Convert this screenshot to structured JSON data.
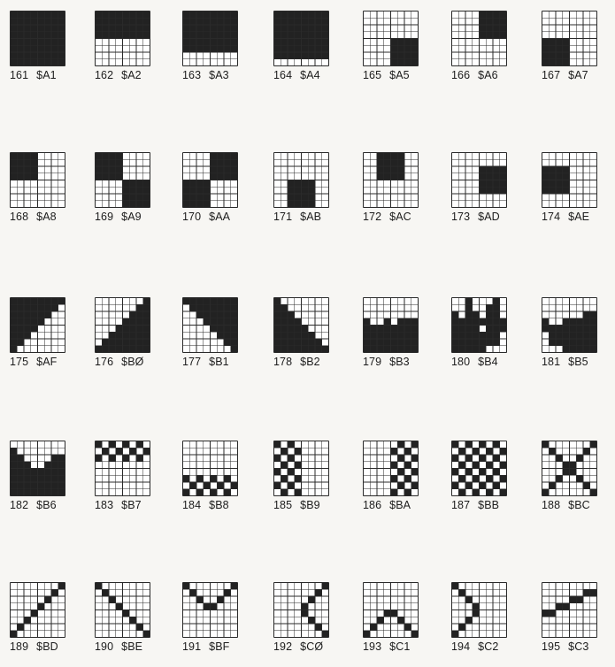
{
  "colors": {
    "ink": "#222222",
    "paper": "#ffffff",
    "grid": "#2a2a2a",
    "page": "#f7f6f3"
  },
  "characters": [
    {
      "dec": "161",
      "hex": "$A1",
      "rows": [
        "11111111",
        "11111111",
        "11111111",
        "11111111",
        "11111111",
        "11111111",
        "11111111",
        "11111111"
      ]
    },
    {
      "dec": "162",
      "hex": "$A2",
      "rows": [
        "11111111",
        "11111111",
        "11111111",
        "11111111",
        "00000000",
        "00000000",
        "00000000",
        "00000000"
      ]
    },
    {
      "dec": "163",
      "hex": "$A3",
      "rows": [
        "11111111",
        "11111111",
        "11111111",
        "11111111",
        "11111111",
        "11111111",
        "00000000",
        "00000000"
      ]
    },
    {
      "dec": "164",
      "hex": "$A4",
      "rows": [
        "11111111",
        "11111111",
        "11111111",
        "11111111",
        "11111111",
        "11111111",
        "11111111",
        "00000000"
      ]
    },
    {
      "dec": "165",
      "hex": "$A5",
      "rows": [
        "00000000",
        "00000000",
        "00000000",
        "00000000",
        "00001111",
        "00001111",
        "00001111",
        "00001111"
      ]
    },
    {
      "dec": "166",
      "hex": "$A6",
      "rows": [
        "00001111",
        "00001111",
        "00001111",
        "00001111",
        "00000000",
        "00000000",
        "00000000",
        "00000000"
      ]
    },
    {
      "dec": "167",
      "hex": "$A7",
      "rows": [
        "00000000",
        "00000000",
        "00000000",
        "00000000",
        "11110000",
        "11110000",
        "11110000",
        "11110000"
      ]
    },
    {
      "dec": "168",
      "hex": "$A8",
      "rows": [
        "11110000",
        "11110000",
        "11110000",
        "11110000",
        "00000000",
        "00000000",
        "00000000",
        "00000000"
      ]
    },
    {
      "dec": "169",
      "hex": "$A9",
      "rows": [
        "11110000",
        "11110000",
        "11110000",
        "11110000",
        "00001111",
        "00001111",
        "00001111",
        "00001111"
      ]
    },
    {
      "dec": "170",
      "hex": "$AA",
      "rows": [
        "00001111",
        "00001111",
        "00001111",
        "00001111",
        "11110000",
        "11110000",
        "11110000",
        "11110000"
      ]
    },
    {
      "dec": "171",
      "hex": "$AB",
      "rows": [
        "00000000",
        "00000000",
        "00000000",
        "00000000",
        "00111100",
        "00111100",
        "00111100",
        "00111100"
      ]
    },
    {
      "dec": "172",
      "hex": "$AC",
      "rows": [
        "00111100",
        "00111100",
        "00111100",
        "00111100",
        "00000000",
        "00000000",
        "00000000",
        "00000000"
      ]
    },
    {
      "dec": "173",
      "hex": "$AD",
      "rows": [
        "00000000",
        "00000000",
        "00001111",
        "00001111",
        "00001111",
        "00001111",
        "00000000",
        "00000000"
      ]
    },
    {
      "dec": "174",
      "hex": "$AE",
      "rows": [
        "00000000",
        "00000000",
        "11110000",
        "11110000",
        "11110000",
        "11110000",
        "00000000",
        "00000000"
      ]
    },
    {
      "dec": "175",
      "hex": "$AF",
      "rows": [
        "11111111",
        "11111110",
        "11111100",
        "11111000",
        "11110000",
        "11100000",
        "11000000",
        "10000000"
      ]
    },
    {
      "dec": "176",
      "hex": "$BØ",
      "rows": [
        "00000001",
        "00000011",
        "00000111",
        "00001111",
        "00011111",
        "00111111",
        "01111111",
        "11111111"
      ]
    },
    {
      "dec": "177",
      "hex": "$B1",
      "rows": [
        "11111111",
        "01111111",
        "00111111",
        "00011111",
        "00001111",
        "00000111",
        "00000011",
        "00000001"
      ]
    },
    {
      "dec": "178",
      "hex": "$B2",
      "rows": [
        "10000000",
        "11000000",
        "11100000",
        "11110000",
        "11111000",
        "11111100",
        "11111110",
        "11111111"
      ]
    },
    {
      "dec": "179",
      "hex": "$B3",
      "rows": [
        "00000000",
        "00000000",
        "00000000",
        "10010111",
        "11111111",
        "11111111",
        "11111111",
        "11111111"
      ]
    },
    {
      "dec": "180",
      "hex": "$B4",
      "rows": [
        "00100010",
        "00100110",
        "10110110",
        "11111111",
        "11110111",
        "11111110",
        "11111110",
        "11111000"
      ]
    },
    {
      "dec": "181",
      "hex": "$B5",
      "rows": [
        "00000000",
        "00000000",
        "00000011",
        "10011111",
        "11111111",
        "01111111",
        "01111111",
        "00011111"
      ]
    },
    {
      "dec": "182",
      "hex": "$B6",
      "rows": [
        "00000000",
        "10000000",
        "11000011",
        "11100111",
        "11111111",
        "11111111",
        "11111111",
        "11111111"
      ]
    },
    {
      "dec": "183",
      "hex": "$B7",
      "rows": [
        "10101010",
        "01010101",
        "10101010",
        "00000000",
        "00000000",
        "00000000",
        "00000000",
        "00000000"
      ]
    },
    {
      "dec": "184",
      "hex": "$B8",
      "rows": [
        "00000000",
        "00000000",
        "00000000",
        "00000000",
        "00000000",
        "10101010",
        "01010101",
        "10101010"
      ]
    },
    {
      "dec": "185",
      "hex": "$B9",
      "rows": [
        "10100000",
        "01010000",
        "10100000",
        "01010000",
        "10100000",
        "01010000",
        "10100000",
        "01010000"
      ]
    },
    {
      "dec": "186",
      "hex": "$BA",
      "rows": [
        "00000101",
        "00001010",
        "00000101",
        "00001010",
        "00000101",
        "00001010",
        "00000101",
        "00001010"
      ]
    },
    {
      "dec": "187",
      "hex": "$BB",
      "rows": [
        "10101010",
        "01010101",
        "10101010",
        "01010101",
        "10101010",
        "01010101",
        "10101010",
        "01010101"
      ]
    },
    {
      "dec": "188",
      "hex": "$BC",
      "rows": [
        "10000001",
        "01000010",
        "00100100",
        "00011000",
        "00011000",
        "00100100",
        "01000010",
        "10000001"
      ]
    },
    {
      "dec": "189",
      "hex": "$BD",
      "rows": [
        "00000001",
        "00000010",
        "00000100",
        "00001000",
        "00010000",
        "00100000",
        "01000000",
        "10000000"
      ]
    },
    {
      "dec": "190",
      "hex": "$BE",
      "rows": [
        "10000000",
        "01000000",
        "00100000",
        "00010000",
        "00001000",
        "00000100",
        "00000010",
        "00000001"
      ]
    },
    {
      "dec": "191",
      "hex": "$BF",
      "rows": [
        "10000001",
        "01000010",
        "00100100",
        "00011000",
        "00000000",
        "00000000",
        "00000000",
        "00000000"
      ]
    },
    {
      "dec": "192",
      "hex": "$CØ",
      "rows": [
        "00000001",
        "00000010",
        "00000100",
        "00001000",
        "00001000",
        "00000100",
        "00000010",
        "00000001"
      ]
    },
    {
      "dec": "193",
      "hex": "$C1",
      "rows": [
        "00000000",
        "00000000",
        "00000000",
        "00000000",
        "00011000",
        "00100100",
        "01000010",
        "10000001"
      ]
    },
    {
      "dec": "194",
      "hex": "$C2",
      "rows": [
        "10000000",
        "01000000",
        "00100000",
        "00010000",
        "00010000",
        "00100000",
        "01000000",
        "10000000"
      ]
    },
    {
      "dec": "195",
      "hex": "$C3",
      "rows": [
        "00000000",
        "00000011",
        "00001100",
        "00110000",
        "11000000",
        "00000000",
        "00000000",
        "00000000"
      ]
    }
  ]
}
